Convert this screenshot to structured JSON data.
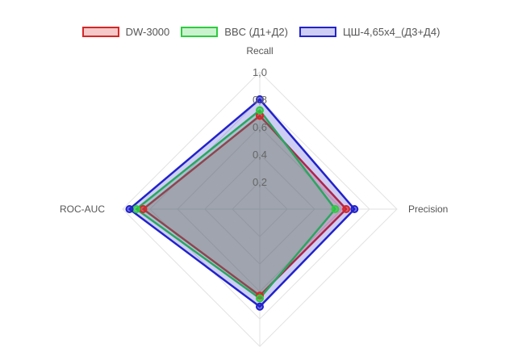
{
  "chart_data": {
    "type": "radar",
    "axes": [
      "Recall",
      "Precision",
      "",
      "ROC-AUC"
    ],
    "r_ticks": [
      "0,2",
      "0,4",
      "0,6",
      "0,8",
      "1,0"
    ],
    "r_tick_values": [
      0.2,
      0.4,
      0.6,
      0.8,
      1.0
    ],
    "rlim": [
      0,
      1.0
    ],
    "grid": true,
    "legend_position": "top",
    "series": [
      {
        "name": "DW-3000",
        "values": [
          0.68,
          0.63,
          0.63,
          0.85
        ],
        "color": "#d62728",
        "fill": "rgba(214,39,40,0.25)"
      },
      {
        "name": "BBC (Д1+Д2)",
        "values": [
          0.72,
          0.55,
          0.65,
          0.9
        ],
        "color": "#2ecc40",
        "fill": "rgba(46,204,64,0.25)"
      },
      {
        "name": "ЦШ-4,65x4_(Д3+Д4)",
        "values": [
          0.8,
          0.69,
          0.71,
          0.95
        ],
        "color": "#2222cc",
        "fill": "rgba(34,34,204,0.22)"
      }
    ]
  }
}
